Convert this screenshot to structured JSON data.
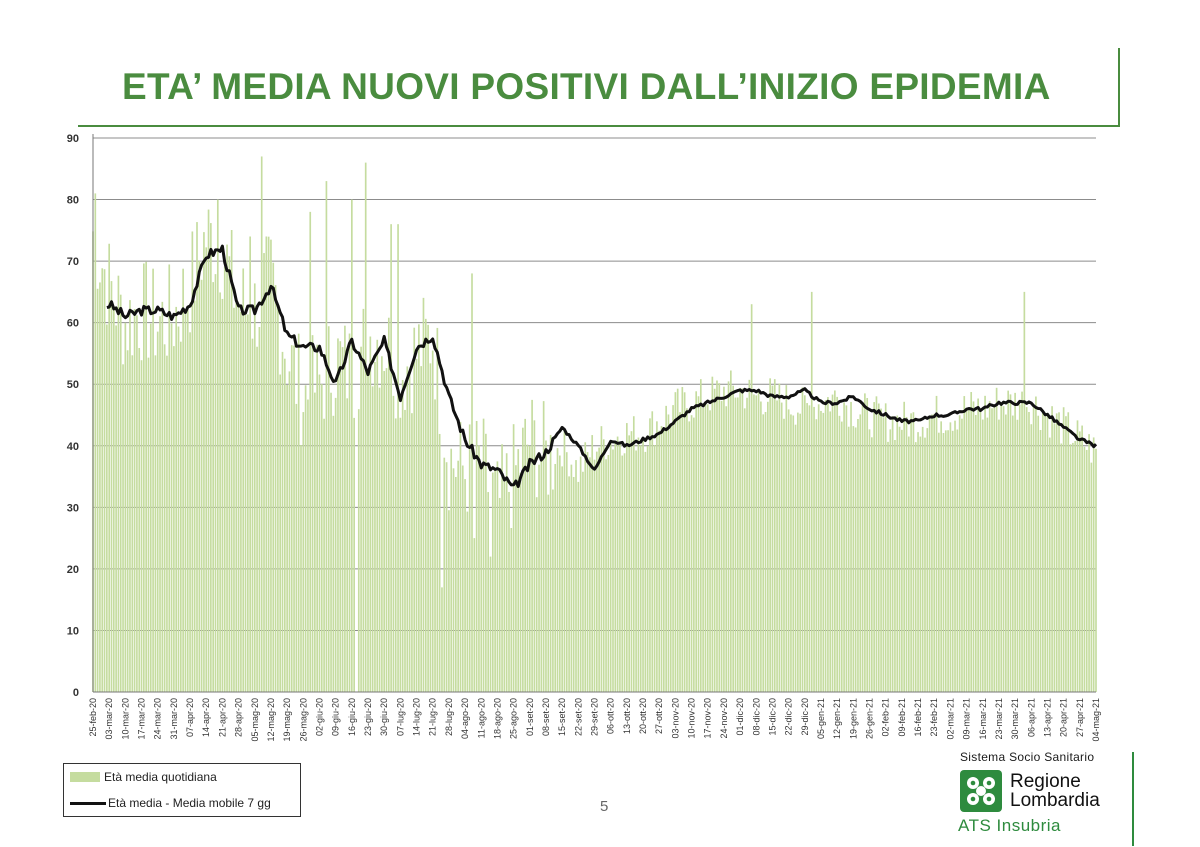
{
  "title": "ETA’ MEDIA NUOVI POSITIVI DALL’INIZIO EPIDEMIA",
  "page_number": "5",
  "logo": {
    "top_text": "Sistema Socio Sanitario",
    "name_line1": "Regione",
    "name_line2": "Lombardia",
    "sub": "ATS Insubria"
  },
  "colors": {
    "title": "#4a8c3f",
    "bars": "#c5dc9f",
    "line": "#111111",
    "grid": "#8c8c8c",
    "logo": "#2e8b3e"
  },
  "chart_data": {
    "type": "bar",
    "title": "ETA’ MEDIA NUOVI POSITIVI DALL’INIZIO EPIDEMIA",
    "ylim": [
      0,
      90
    ],
    "y_ticks": [
      0,
      10,
      20,
      30,
      40,
      50,
      60,
      70,
      80,
      90
    ],
    "grid": true,
    "legend_position": "bottom-left",
    "x_ticks": [
      "25-feb-20",
      "03-mar-20",
      "10-mar-20",
      "17-mar-20",
      "24-mar-20",
      "31-mar-20",
      "07-apr-20",
      "14-apr-20",
      "21-apr-20",
      "28-apr-20",
      "05-mag-20",
      "12-mag-20",
      "19-mag-20",
      "26-mag-20",
      "02-giu-20",
      "09-giu-20",
      "16-giu-20",
      "23-giu-20",
      "30-giu-20",
      "07-lug-20",
      "14-lug-20",
      "21-lug-20",
      "28-lug-20",
      "04-ago-20",
      "11-ago-20",
      "18-ago-20",
      "25-ago-20",
      "01-set-20",
      "08-set-20",
      "15-set-20",
      "22-set-20",
      "29-set-20",
      "06-ott-20",
      "13-ott-20",
      "20-ott-20",
      "27-ott-20",
      "03-nov-20",
      "10-nov-20",
      "17-nov-20",
      "24-nov-20",
      "01-dic-20",
      "08-dic-20",
      "15-dic-20",
      "22-dic-20",
      "29-dic-20",
      "05-gen-21",
      "12-gen-21",
      "19-gen-21",
      "26-gen-21",
      "02-feb-21",
      "09-feb-21",
      "16-feb-21",
      "23-feb-21",
      "02-mar-21",
      "09-mar-21",
      "16-mar-21",
      "23-mar-21",
      "30-mar-21",
      "06-apr-21",
      "13-apr-21",
      "20-apr-21",
      "27-apr-21",
      "04-mag-21"
    ],
    "series": [
      {
        "name": "Età media quotidiana",
        "kind": "bar",
        "weekly_anchor_values": [
          75,
          66,
          60,
          62,
          60,
          61,
          66,
          74,
          72,
          63,
          62,
          67,
          55,
          48,
          50,
          54,
          52,
          58,
          57,
          52,
          55,
          58,
          38,
          36,
          37,
          30,
          35,
          41,
          38,
          40,
          36,
          40,
          41,
          42,
          42,
          44,
          46,
          47,
          48,
          49,
          49,
          48,
          48,
          47,
          46,
          47,
          48,
          46,
          45,
          44,
          44,
          44,
          45,
          45,
          46,
          46,
          47,
          47,
          47,
          45,
          43,
          41,
          39
        ],
        "peaks": [
          {
            "x": "26-feb-20",
            "value": 81
          },
          {
            "x": "19-apr-20",
            "value": 80
          },
          {
            "x": "03-mag-20",
            "value": 74
          },
          {
            "x": "08-mag-20",
            "value": 87
          },
          {
            "x": "29-mag-20",
            "value": 78
          },
          {
            "x": "05-giu-20",
            "value": 83
          },
          {
            "x": "16-giu-20",
            "value": 80
          },
          {
            "x": "22-giu-20",
            "value": 86
          },
          {
            "x": "03-lug-20",
            "value": 76
          },
          {
            "x": "06-lug-20",
            "value": 76
          },
          {
            "x": "07-ago-20",
            "value": 68
          },
          {
            "x": "06-dic-20",
            "value": 63
          },
          {
            "x": "01-gen-21",
            "value": 65
          },
          {
            "x": "03-apr-21",
            "value": 65
          }
        ],
        "dips": [
          {
            "x": "25-lug-20",
            "value": 17
          },
          {
            "x": "15-ago-20",
            "value": 22
          },
          {
            "x": "08-ago-20",
            "value": 25
          },
          {
            "x": "18-giu-20",
            "value": 0
          }
        ]
      },
      {
        "name": "Età media - Media mobile 7 gg",
        "kind": "line",
        "weekly_values": [
          61,
          63,
          61,
          62,
          62,
          61,
          63,
          71,
          72,
          62,
          62,
          66,
          58,
          56,
          56,
          50,
          57,
          52,
          57,
          48,
          56,
          58,
          48,
          41,
          37,
          36,
          33,
          37,
          39,
          43,
          40,
          36,
          41,
          40,
          41,
          42,
          44,
          46,
          47,
          48,
          49,
          49,
          48,
          48,
          49,
          47,
          47,
          48,
          46,
          45,
          44,
          44,
          45,
          45,
          46,
          46,
          47,
          47,
          47,
          45,
          43,
          41,
          40
        ]
      }
    ]
  },
  "legend": {
    "bar_label": "Età media quotidiana",
    "line_label": "Età media - Media mobile 7 gg"
  }
}
